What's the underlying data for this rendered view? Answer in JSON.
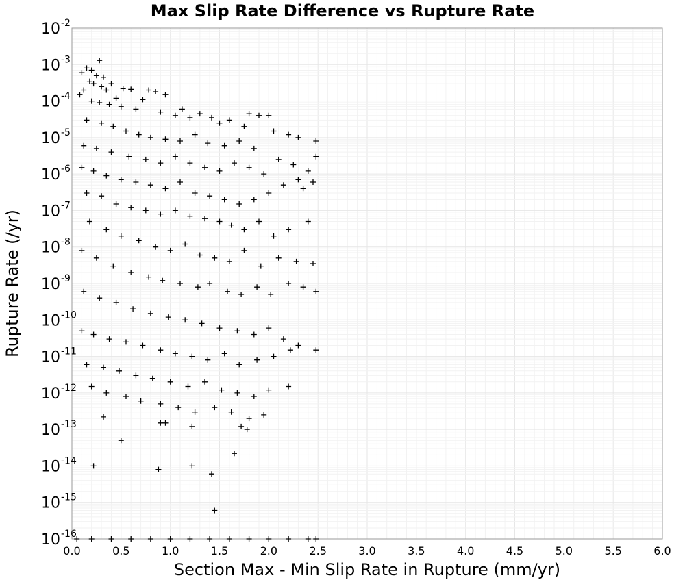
{
  "chart_data": {
    "type": "scatter",
    "title": "Max Slip Rate Difference vs Rupture Rate",
    "xlabel": "Section Max - Min Slip Rate in Rupture (mm/yr)",
    "ylabel": "Rupture Rate (/yr)",
    "xlim": [
      0.0,
      6.0
    ],
    "ylim": [
      1e-16,
      0.01
    ],
    "yscale": "log",
    "grid": true,
    "marker": "+",
    "x_ticks": [
      "0.0",
      "0.5",
      "1.0",
      "1.5",
      "2.0",
      "2.5",
      "3.0",
      "3.5",
      "4.0",
      "4.5",
      "5.0",
      "5.5",
      "6.0"
    ],
    "y_ticks": [
      {
        "base": "10",
        "exp": "-2"
      },
      {
        "base": "10",
        "exp": "-3"
      },
      {
        "base": "10",
        "exp": "-4"
      },
      {
        "base": "10",
        "exp": "-5"
      },
      {
        "base": "10",
        "exp": "-6"
      },
      {
        "base": "10",
        "exp": "-7"
      },
      {
        "base": "10",
        "exp": "-8"
      },
      {
        "base": "10",
        "exp": "-9"
      },
      {
        "base": "10",
        "exp": "-10"
      },
      {
        "base": "10",
        "exp": "-11"
      },
      {
        "base": "10",
        "exp": "-12"
      },
      {
        "base": "10",
        "exp": "-13"
      },
      {
        "base": "10",
        "exp": "-14"
      },
      {
        "base": "10",
        "exp": "-15"
      },
      {
        "base": "10",
        "exp": "-16"
      }
    ],
    "series": [
      {
        "points": [
          [
            0.28,
            0.0013
          ],
          [
            0.15,
            0.0008
          ],
          [
            0.2,
            0.0007
          ],
          [
            0.1,
            0.0006
          ],
          [
            0.25,
            0.0005
          ],
          [
            0.32,
            0.00045
          ],
          [
            0.18,
            0.00035
          ],
          [
            0.22,
            0.0003
          ],
          [
            0.3,
            0.00025
          ],
          [
            0.12,
            0.0002
          ],
          [
            0.4,
            0.0003
          ],
          [
            0.35,
            0.0002
          ],
          [
            0.08,
            0.00015
          ],
          [
            0.45,
            0.00012
          ],
          [
            0.52,
            0.00022
          ],
          [
            0.6,
            0.00021
          ],
          [
            0.78,
            0.0002
          ],
          [
            0.85,
            0.00018
          ],
          [
            0.95,
            0.00015
          ],
          [
            0.2,
            0.0001
          ],
          [
            0.28,
            9e-05
          ],
          [
            0.38,
            8e-05
          ],
          [
            0.5,
            7e-05
          ],
          [
            0.65,
            6e-05
          ],
          [
            0.72,
            0.00011
          ],
          [
            0.9,
            5e-05
          ],
          [
            1.05,
            4e-05
          ],
          [
            1.12,
            6e-05
          ],
          [
            1.2,
            3.5e-05
          ],
          [
            1.3,
            4.5e-05
          ],
          [
            1.42,
            3.5e-05
          ],
          [
            1.5,
            2.5e-05
          ],
          [
            1.6,
            3e-05
          ],
          [
            1.75,
            2e-05
          ],
          [
            1.9,
            4e-05
          ],
          [
            2.0,
            4e-05
          ],
          [
            1.8,
            4.5e-05
          ],
          [
            0.15,
            3e-05
          ],
          [
            0.3,
            2.5e-05
          ],
          [
            0.42,
            2e-05
          ],
          [
            0.55,
            1.5e-05
          ],
          [
            0.68,
            1.2e-05
          ],
          [
            0.8,
            1e-05
          ],
          [
            0.95,
            9e-06
          ],
          [
            1.1,
            8e-06
          ],
          [
            1.25,
            1.2e-05
          ],
          [
            1.38,
            7e-06
          ],
          [
            1.55,
            6e-06
          ],
          [
            1.7,
            8e-06
          ],
          [
            1.85,
            5e-06
          ],
          [
            2.05,
            1.5e-05
          ],
          [
            2.2,
            1.2e-05
          ],
          [
            2.3,
            1e-05
          ],
          [
            2.48,
            8e-06
          ],
          [
            0.12,
            6e-06
          ],
          [
            0.25,
            5e-06
          ],
          [
            0.4,
            4e-06
          ],
          [
            0.58,
            3e-06
          ],
          [
            0.75,
            2.5e-06
          ],
          [
            0.9,
            2e-06
          ],
          [
            1.05,
            3e-06
          ],
          [
            1.2,
            2e-06
          ],
          [
            1.35,
            1.5e-06
          ],
          [
            1.5,
            1.2e-06
          ],
          [
            1.65,
            2e-06
          ],
          [
            1.8,
            1.5e-06
          ],
          [
            1.95,
            1e-06
          ],
          [
            2.1,
            2.5e-06
          ],
          [
            2.25,
            1.8e-06
          ],
          [
            2.4,
            1.2e-06
          ],
          [
            2.48,
            3e-06
          ],
          [
            0.1,
            1.5e-06
          ],
          [
            0.22,
            1.2e-06
          ],
          [
            0.35,
            9e-07
          ],
          [
            0.5,
            7e-07
          ],
          [
            0.65,
            6e-07
          ],
          [
            0.8,
            5e-07
          ],
          [
            0.95,
            4e-07
          ],
          [
            1.1,
            6e-07
          ],
          [
            1.25,
            3e-07
          ],
          [
            1.4,
            2.5e-07
          ],
          [
            1.55,
            2e-07
          ],
          [
            1.7,
            1.5e-07
          ],
          [
            1.85,
            2e-07
          ],
          [
            2.0,
            3e-07
          ],
          [
            2.15,
            5e-07
          ],
          [
            2.3,
            7e-07
          ],
          [
            2.45,
            6e-07
          ],
          [
            2.35,
            4e-07
          ],
          [
            0.15,
            3e-07
          ],
          [
            0.3,
            2.5e-07
          ],
          [
            0.45,
            1.5e-07
          ],
          [
            0.6,
            1.2e-07
          ],
          [
            0.75,
            1e-07
          ],
          [
            0.9,
            8e-08
          ],
          [
            1.05,
            1e-07
          ],
          [
            1.2,
            7e-08
          ],
          [
            1.35,
            6e-08
          ],
          [
            1.5,
            5e-08
          ],
          [
            1.62,
            4e-08
          ],
          [
            1.75,
            3e-08
          ],
          [
            1.9,
            5e-08
          ],
          [
            2.05,
            2e-08
          ],
          [
            2.2,
            3e-08
          ],
          [
            2.4,
            5e-08
          ],
          [
            0.18,
            5e-08
          ],
          [
            0.35,
            3e-08
          ],
          [
            0.5,
            2e-08
          ],
          [
            0.68,
            1.5e-08
          ],
          [
            0.85,
            1e-08
          ],
          [
            1.0,
            8e-09
          ],
          [
            1.15,
            1.2e-08
          ],
          [
            1.3,
            6e-09
          ],
          [
            1.45,
            5e-09
          ],
          [
            1.6,
            4e-09
          ],
          [
            1.75,
            8e-09
          ],
          [
            1.92,
            3e-09
          ],
          [
            2.1,
            5e-09
          ],
          [
            2.28,
            4e-09
          ],
          [
            2.45,
            3.5e-09
          ],
          [
            0.1,
            8e-09
          ],
          [
            0.25,
            5e-09
          ],
          [
            0.42,
            3e-09
          ],
          [
            0.6,
            2e-09
          ],
          [
            0.78,
            1.5e-09
          ],
          [
            0.92,
            1.2e-09
          ],
          [
            1.1,
            1e-09
          ],
          [
            1.28,
            8e-10
          ],
          [
            1.4,
            1e-09
          ],
          [
            1.58,
            6e-10
          ],
          [
            1.72,
            5e-10
          ],
          [
            1.88,
            8e-10
          ],
          [
            2.02,
            5e-10
          ],
          [
            2.2,
            1e-09
          ],
          [
            2.35,
            8e-10
          ],
          [
            2.48,
            6e-10
          ],
          [
            0.12,
            6e-10
          ],
          [
            0.28,
            4e-10
          ],
          [
            0.45,
            3e-10
          ],
          [
            0.62,
            2e-10
          ],
          [
            0.8,
            1.5e-10
          ],
          [
            0.98,
            1.2e-10
          ],
          [
            1.15,
            1e-10
          ],
          [
            1.32,
            8e-11
          ],
          [
            1.5,
            6e-11
          ],
          [
            1.68,
            5e-11
          ],
          [
            1.85,
            4e-11
          ],
          [
            2.0,
            6e-11
          ],
          [
            2.15,
            3e-11
          ],
          [
            2.3,
            2e-11
          ],
          [
            0.1,
            5e-11
          ],
          [
            0.22,
            4e-11
          ],
          [
            0.38,
            3e-11
          ],
          [
            0.55,
            2.5e-11
          ],
          [
            0.72,
            2e-11
          ],
          [
            0.9,
            1.5e-11
          ],
          [
            1.05,
            1.2e-11
          ],
          [
            1.22,
            1e-11
          ],
          [
            1.38,
            8e-12
          ],
          [
            1.55,
            1.2e-11
          ],
          [
            1.7,
            6e-12
          ],
          [
            1.88,
            8e-12
          ],
          [
            2.05,
            1e-11
          ],
          [
            2.22,
            1.5e-11
          ],
          [
            2.48,
            1.5e-11
          ],
          [
            0.15,
            6e-12
          ],
          [
            0.32,
            5e-12
          ],
          [
            0.48,
            4e-12
          ],
          [
            0.65,
            3e-12
          ],
          [
            0.82,
            2.5e-12
          ],
          [
            1.0,
            2e-12
          ],
          [
            1.18,
            1.5e-12
          ],
          [
            1.35,
            2e-12
          ],
          [
            1.52,
            1.2e-12
          ],
          [
            1.68,
            1e-12
          ],
          [
            1.85,
            8e-13
          ],
          [
            2.0,
            1.2e-12
          ],
          [
            2.2,
            1.5e-12
          ],
          [
            0.2,
            1.5e-12
          ],
          [
            0.35,
            1e-12
          ],
          [
            0.55,
            8e-13
          ],
          [
            0.7,
            6e-13
          ],
          [
            0.9,
            5e-13
          ],
          [
            1.08,
            4e-13
          ],
          [
            1.25,
            3e-13
          ],
          [
            1.45,
            4e-13
          ],
          [
            1.62,
            3e-13
          ],
          [
            1.8,
            2e-13
          ],
          [
            1.95,
            2.5e-13
          ],
          [
            0.32,
            2.2e-13
          ],
          [
            0.9,
            1.5e-13
          ],
          [
            0.95,
            1.5e-13
          ],
          [
            1.22,
            1.2e-13
          ],
          [
            1.72,
            1.2e-13
          ],
          [
            1.78,
            1e-13
          ],
          [
            0.5,
            5e-14
          ],
          [
            1.65,
            2.2e-14
          ],
          [
            0.22,
            1e-14
          ],
          [
            1.22,
            1e-14
          ],
          [
            0.88,
            8e-15
          ],
          [
            1.42,
            6e-15
          ],
          [
            1.45,
            6e-16
          ],
          [
            0.05,
            1e-16
          ],
          [
            0.2,
            1e-16
          ],
          [
            0.4,
            1e-16
          ],
          [
            0.6,
            1e-16
          ],
          [
            0.8,
            1e-16
          ],
          [
            1.0,
            1e-16
          ],
          [
            1.2,
            1e-16
          ],
          [
            1.4,
            1e-16
          ],
          [
            1.6,
            1e-16
          ],
          [
            1.8,
            1e-16
          ],
          [
            2.0,
            1e-16
          ],
          [
            2.2,
            1e-16
          ],
          [
            2.4,
            1e-16
          ],
          [
            2.48,
            1e-16
          ]
        ]
      }
    ]
  }
}
